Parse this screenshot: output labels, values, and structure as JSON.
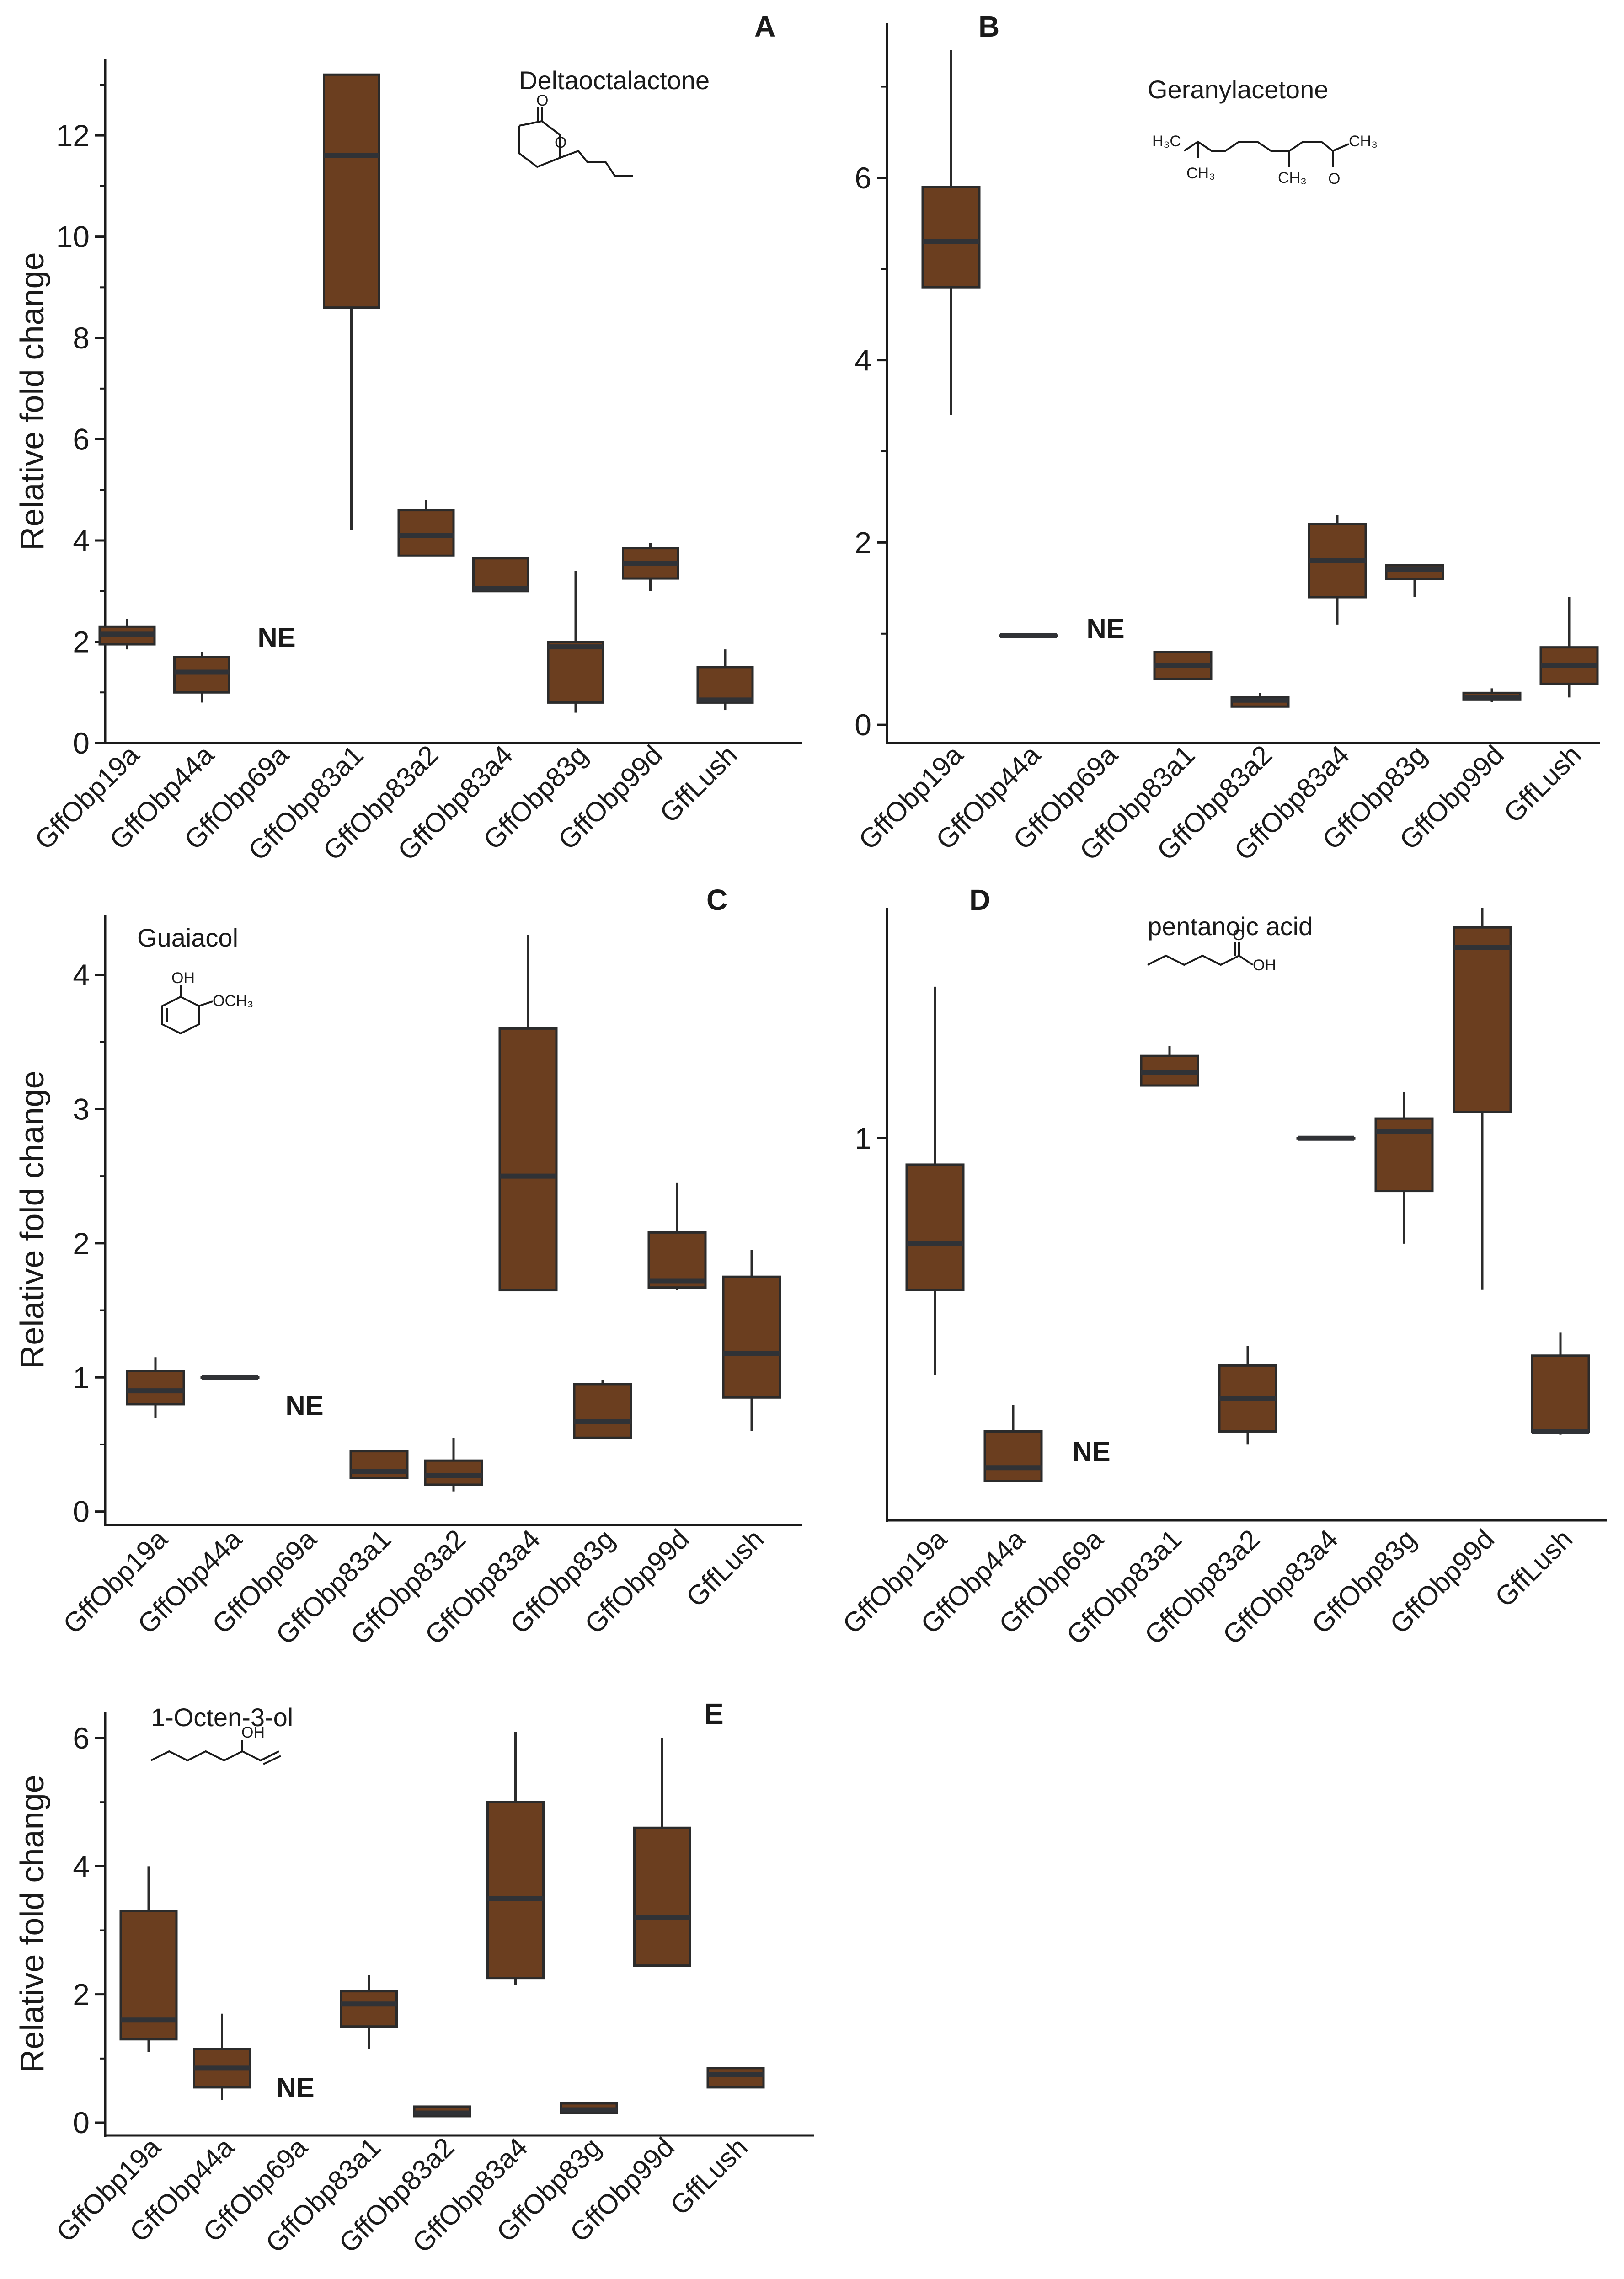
{
  "colors": {
    "box_fill": "#6b3e1f",
    "median": "#303236",
    "outline": "#2b2b2b"
  },
  "chart_data": [
    {
      "id": "A",
      "type": "box",
      "letter": "A",
      "compound": "Deltaoctalactone",
      "ylabel": "Relative fold change",
      "ylim": [
        0,
        13.5
      ],
      "yticks": [
        0,
        2,
        4,
        6,
        8,
        10,
        12
      ],
      "ytick_labels": [
        "0",
        "2",
        "4",
        "6",
        "8",
        "10",
        "12"
      ],
      "minor_ticks": [
        1,
        3,
        5,
        7,
        9,
        11,
        13
      ],
      "categories": [
        "GffObp19a",
        "GffObp44a",
        "GffObp69a",
        "GffObp83a1",
        "GffObp83a2",
        "GffObp83a4",
        "GffObp83g",
        "GffObp99d",
        "GffLush"
      ],
      "ne_label": "NE",
      "ne_value": 1.9,
      "boxes": [
        {
          "min": 1.85,
          "q1": 1.95,
          "median": 2.15,
          "q3": 2.3,
          "max": 2.45
        },
        {
          "min": 0.8,
          "q1": 1.0,
          "median": 1.4,
          "q3": 1.7,
          "max": 1.8
        },
        null,
        {
          "min": 4.2,
          "q1": 8.6,
          "median": 11.6,
          "q3": 13.2,
          "max": 13.2
        },
        {
          "min": 3.7,
          "q1": 3.7,
          "median": 4.1,
          "q3": 4.6,
          "max": 4.8
        },
        {
          "min": 3.0,
          "q1": 3.0,
          "median": 3.05,
          "q3": 3.65,
          "max": 3.65
        },
        {
          "min": 0.6,
          "q1": 0.8,
          "median": 1.9,
          "q3": 2.0,
          "max": 3.4
        },
        {
          "min": 3.0,
          "q1": 3.25,
          "median": 3.55,
          "q3": 3.85,
          "max": 3.95
        },
        {
          "min": 0.65,
          "q1": 0.8,
          "median": 0.85,
          "q3": 1.5,
          "max": 1.85
        }
      ]
    },
    {
      "id": "B",
      "type": "box",
      "letter": "B",
      "compound": "Geranylacetone",
      "ylabel": "",
      "ylim": [
        -0.2,
        7.7
      ],
      "yticks": [
        0,
        2,
        4,
        6
      ],
      "ytick_labels": [
        "0",
        "2",
        "4",
        "6"
      ],
      "minor_ticks": [
        1,
        3,
        5,
        7
      ],
      "categories": [
        "GffObp19a",
        "GffObp44a",
        "GffObp69a",
        "GffObp83a1",
        "GffObp83a2",
        "GffObp83a4",
        "GffObp83g",
        "GffObp99d",
        "GffLush"
      ],
      "ne_label": "NE",
      "ne_value": 0.95,
      "boxes": [
        {
          "min": 3.4,
          "q1": 4.8,
          "median": 5.3,
          "q3": 5.9,
          "max": 7.4
        },
        {
          "min": 0.98,
          "q1": 0.98,
          "median": 0.98,
          "q3": 0.98,
          "max": 0.98
        },
        null,
        {
          "min": 0.5,
          "q1": 0.5,
          "median": 0.65,
          "q3": 0.8,
          "max": 0.8
        },
        {
          "min": 0.2,
          "q1": 0.2,
          "median": 0.27,
          "q3": 0.3,
          "max": 0.35
        },
        {
          "min": 1.1,
          "q1": 1.4,
          "median": 1.8,
          "q3": 2.2,
          "max": 2.3
        },
        {
          "min": 1.4,
          "q1": 1.6,
          "median": 1.7,
          "q3": 1.75,
          "max": 1.75
        },
        {
          "min": 0.25,
          "q1": 0.28,
          "median": 0.3,
          "q3": 0.35,
          "max": 0.4
        },
        {
          "min": 0.3,
          "q1": 0.45,
          "median": 0.65,
          "q3": 0.85,
          "max": 1.4
        }
      ]
    },
    {
      "id": "C",
      "type": "box",
      "letter": "C",
      "compound": "Guaiacol",
      "ylabel": "Relative fold change",
      "ylim": [
        -0.1,
        4.45
      ],
      "yticks": [
        0,
        1,
        2,
        3,
        4
      ],
      "ytick_labels": [
        "0",
        "1",
        "2",
        "3",
        "4"
      ],
      "minor_ticks": [
        0.5,
        1.5,
        2.5,
        3.5
      ],
      "categories": [
        "GffObp19a",
        "GffObp44a",
        "GffObp69a",
        "GffObp83a1",
        "GffObp83a2",
        "GffObp83a4",
        "GffObp83g",
        "GffObp99d",
        "GffLush"
      ],
      "ne_label": "NE",
      "ne_value": 0.72,
      "boxes": [
        {
          "min": 0.7,
          "q1": 0.8,
          "median": 0.9,
          "q3": 1.05,
          "max": 1.15
        },
        {
          "min": 1.0,
          "q1": 1.0,
          "median": 1.0,
          "q3": 1.0,
          "max": 1.0
        },
        null,
        {
          "min": 0.25,
          "q1": 0.25,
          "median": 0.3,
          "q3": 0.45,
          "max": 0.45
        },
        {
          "min": 0.15,
          "q1": 0.2,
          "median": 0.27,
          "q3": 0.38,
          "max": 0.55
        },
        {
          "min": 1.65,
          "q1": 1.65,
          "median": 2.5,
          "q3": 3.6,
          "max": 4.3
        },
        {
          "min": 0.55,
          "q1": 0.55,
          "median": 0.67,
          "q3": 0.95,
          "max": 0.98
        },
        {
          "min": 1.65,
          "q1": 1.67,
          "median": 1.72,
          "q3": 2.08,
          "max": 2.45
        },
        {
          "min": 0.6,
          "q1": 0.85,
          "median": 1.18,
          "q3": 1.75,
          "max": 1.95
        }
      ]
    },
    {
      "id": "D",
      "type": "box",
      "letter": "D",
      "compound": "pentanoic acid",
      "ylabel": "",
      "ylim": [
        0.42,
        1.35
      ],
      "yticks": [
        1
      ],
      "ytick_labels": [
        "1"
      ],
      "minor_ticks": [],
      "categories": [
        "GffObp19a",
        "GffObp44a",
        "GffObp69a",
        "GffObp83a1",
        "GffObp83a2",
        "GffObp83a4",
        "GffObp83g",
        "GffObp99d",
        "GffLush"
      ],
      "ne_label": "NE",
      "ne_value": 0.51,
      "boxes": [
        {
          "min": 0.64,
          "q1": 0.77,
          "median": 0.84,
          "q3": 0.96,
          "max": 1.23
        },
        {
          "min": 0.48,
          "q1": 0.48,
          "median": 0.5,
          "q3": 0.555,
          "max": 0.595
        },
        null,
        {
          "min": 1.08,
          "q1": 1.08,
          "median": 1.1,
          "q3": 1.125,
          "max": 1.14
        },
        {
          "min": 0.535,
          "q1": 0.555,
          "median": 0.605,
          "q3": 0.655,
          "max": 0.685
        },
        {
          "min": 1.0,
          "q1": 1.0,
          "median": 1.0,
          "q3": 1.0,
          "max": 1.0
        },
        {
          "min": 0.84,
          "q1": 0.92,
          "median": 1.01,
          "q3": 1.03,
          "max": 1.07
        },
        {
          "min": 0.77,
          "q1": 1.04,
          "median": 1.29,
          "q3": 1.32,
          "max": 1.35
        },
        {
          "min": 0.55,
          "q1": 0.555,
          "median": 0.555,
          "q3": 0.67,
          "max": 0.705
        }
      ]
    },
    {
      "id": "E",
      "type": "box",
      "letter": "E",
      "compound": "1-Octen-3-ol",
      "ylabel": "Relative fold change",
      "ylim": [
        -0.2,
        6.4
      ],
      "yticks": [
        0,
        2,
        4,
        6
      ],
      "ytick_labels": [
        "0",
        "2",
        "4",
        "6"
      ],
      "minor_ticks": [
        1,
        3,
        5
      ],
      "categories": [
        "GffObp19a",
        "GffObp44a",
        "GffObp69a",
        "GffObp83a1",
        "GffObp83a2",
        "GffObp83a4",
        "GffObp83g",
        "GffObp99d",
        "GffLush"
      ],
      "ne_label": "NE",
      "ne_value": 0.4,
      "boxes": [
        {
          "min": 1.1,
          "q1": 1.3,
          "median": 1.6,
          "q3": 3.3,
          "max": 4.0
        },
        {
          "min": 0.35,
          "q1": 0.55,
          "median": 0.85,
          "q3": 1.15,
          "max": 1.7
        },
        null,
        {
          "min": 1.15,
          "q1": 1.5,
          "median": 1.85,
          "q3": 2.05,
          "max": 2.3
        },
        {
          "min": 0.1,
          "q1": 0.1,
          "median": 0.15,
          "q3": 0.25,
          "max": 0.25
        },
        {
          "min": 2.15,
          "q1": 2.25,
          "median": 3.5,
          "q3": 5.0,
          "max": 6.1
        },
        {
          "min": 0.15,
          "q1": 0.15,
          "median": 0.2,
          "q3": 0.3,
          "max": 0.3
        },
        {
          "min": 2.45,
          "q1": 2.45,
          "median": 3.2,
          "q3": 4.6,
          "max": 6.0
        },
        {
          "min": 0.55,
          "q1": 0.55,
          "median": 0.75,
          "q3": 0.85,
          "max": 0.85
        }
      ]
    }
  ],
  "structures": {
    "A": {
      "atom_o1": "O",
      "atom_o2": "O"
    },
    "B": {
      "h3c": "H₃C",
      "ch3_a": "CH₃",
      "ch3_b": "CH₃",
      "ch3_c": "CH₃",
      "o": "O"
    },
    "C": {
      "oh": "OH",
      "och3": "OCH₃"
    },
    "D": {
      "o": "O",
      "oh": "OH"
    },
    "E": {
      "oh": "OH"
    }
  }
}
